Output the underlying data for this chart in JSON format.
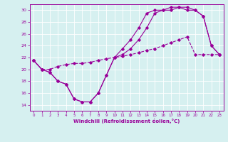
{
  "xlabel": "Windchill (Refroidissement éolien,°C)",
  "bg_color": "#d6f0f0",
  "line_color": "#990099",
  "xlim": [
    -0.5,
    23.5
  ],
  "ylim": [
    13.0,
    31.0
  ],
  "yticks": [
    14,
    16,
    18,
    20,
    22,
    24,
    26,
    28,
    30
  ],
  "xticks": [
    0,
    1,
    2,
    3,
    4,
    5,
    6,
    7,
    8,
    9,
    10,
    11,
    12,
    13,
    14,
    15,
    16,
    17,
    18,
    19,
    20,
    21,
    22,
    23
  ],
  "line1_x": [
    0,
    1,
    2,
    3,
    4,
    5,
    6,
    7,
    8,
    9,
    10,
    11,
    12,
    13,
    14,
    15,
    16,
    17,
    18,
    19,
    20,
    21,
    22,
    23
  ],
  "line1_y": [
    21.5,
    20.0,
    19.5,
    18.0,
    17.5,
    15.0,
    14.5,
    14.5,
    16.0,
    19.0,
    22.0,
    22.5,
    23.5,
    25.0,
    27.0,
    29.5,
    30.0,
    30.0,
    30.5,
    30.5,
    30.0,
    29.0,
    24.0,
    22.5
  ],
  "line2_x": [
    0,
    1,
    2,
    3,
    4,
    5,
    6,
    7,
    8,
    9,
    10,
    11,
    12,
    13,
    14,
    15,
    16,
    17,
    18,
    19,
    20,
    21,
    22,
    23
  ],
  "line2_y": [
    21.5,
    20.0,
    20.0,
    20.5,
    20.8,
    21.0,
    21.0,
    21.2,
    21.5,
    21.8,
    22.0,
    22.2,
    22.5,
    22.8,
    23.2,
    23.5,
    24.0,
    24.5,
    25.0,
    25.5,
    22.5,
    22.5,
    22.5,
    22.5
  ],
  "line3_x": [
    0,
    1,
    2,
    3,
    4,
    5,
    6,
    7,
    8,
    9,
    10,
    11,
    12,
    13,
    14,
    15,
    16,
    17,
    18,
    19,
    20,
    21,
    22,
    23
  ],
  "line3_y": [
    21.5,
    20.0,
    19.5,
    18.0,
    17.5,
    15.0,
    14.5,
    14.5,
    16.0,
    19.0,
    22.0,
    23.5,
    25.0,
    27.0,
    29.5,
    30.0,
    30.0,
    30.5,
    30.5,
    30.0,
    30.0,
    29.0,
    24.0,
    22.5
  ]
}
